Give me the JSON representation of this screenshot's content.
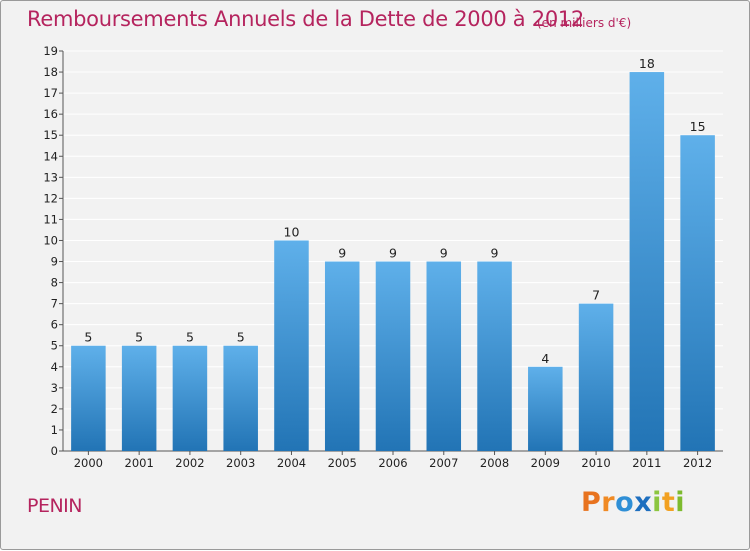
{
  "title": "Remboursements Annuels de la Dette de 2000 à 2012",
  "unit_note": "(en milliers d'€)",
  "place": "PENIN",
  "logo": {
    "text": "Proxiti",
    "letters": [
      {
        "ch": "P",
        "color": "#e8731f"
      },
      {
        "ch": "r",
        "color": "#f08a24"
      },
      {
        "ch": "o",
        "color": "#2f8fd6"
      },
      {
        "ch": "x",
        "color": "#1e6fbf"
      },
      {
        "ch": "i",
        "color": "#8cc63f"
      },
      {
        "ch": "t",
        "color": "#f2a122"
      },
      {
        "ch": "i",
        "color": "#7dbb2e"
      }
    ]
  },
  "colors": {
    "accent": "#b5245e",
    "bar_top": "#5fb0ea",
    "bar_bottom": "#2274b5",
    "grid": "#ffffff",
    "axis": "#555555"
  },
  "chart_data": {
    "type": "bar",
    "title": "Remboursements Annuels de la Dette de 2000 à 2012",
    "xlabel": "",
    "ylabel": "",
    "categories": [
      "2000",
      "2001",
      "2002",
      "2003",
      "2004",
      "2005",
      "2006",
      "2007",
      "2008",
      "2009",
      "2010",
      "2011",
      "2012"
    ],
    "values": [
      5,
      5,
      5,
      5,
      10,
      9,
      9,
      9,
      9,
      4,
      7,
      18,
      15
    ],
    "ylim": [
      0,
      19
    ],
    "yticks": [
      0,
      1,
      2,
      3,
      4,
      5,
      6,
      7,
      8,
      9,
      10,
      11,
      12,
      13,
      14,
      15,
      16,
      17,
      18,
      19
    ],
    "grid": true,
    "data_labels": true
  }
}
